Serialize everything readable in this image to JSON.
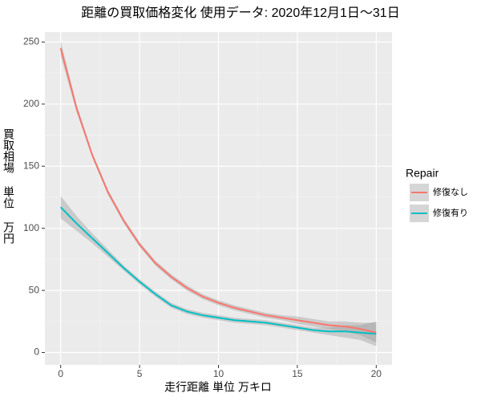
{
  "chart_data": {
    "type": "line",
    "title": "距離の買取価格変化 使用データ: 2020年12月1日～31日",
    "x_label": "走行距離 単位 万キロ",
    "y_label": "買取相場 単位 万円",
    "legend_title": "Repair",
    "legend_position": "right",
    "x": [
      0,
      1,
      2,
      3,
      4,
      5,
      6,
      7,
      8,
      9,
      10,
      11,
      12,
      13,
      14,
      15,
      16,
      17,
      18,
      19,
      20
    ],
    "series": [
      {
        "name": "修復なし",
        "color": "#F8766D",
        "values": [
          245,
          197,
          159,
          129,
          106,
          87,
          72,
          61,
          52,
          45,
          40,
          36,
          33,
          30,
          28,
          26,
          24,
          22,
          21,
          19,
          16
        ],
        "band_lower": [
          239,
          194,
          157,
          127,
          104,
          85,
          70,
          59,
          50,
          43,
          38,
          34,
          31,
          28,
          26,
          23,
          21,
          19,
          17,
          14,
          8
        ],
        "band_upper": [
          251,
          200,
          161,
          131,
          108,
          89,
          74,
          63,
          54,
          47,
          42,
          38,
          35,
          32,
          30,
          29,
          27,
          25,
          25,
          24,
          24
        ]
      },
      {
        "name": "修復有り",
        "color": "#00BFC4",
        "values": [
          117,
          104,
          92,
          80,
          68,
          57,
          47,
          38,
          33,
          30,
          28,
          26,
          25,
          24,
          22,
          20,
          18,
          17,
          17,
          16,
          15
        ],
        "band_lower": [
          108,
          98,
          88,
          77,
          66,
          55,
          45,
          36,
          31,
          28,
          26,
          24,
          23,
          22,
          20,
          18,
          16,
          14,
          12,
          10,
          5
        ],
        "band_upper": [
          126,
          110,
          96,
          83,
          70,
          59,
          49,
          40,
          35,
          32,
          30,
          28,
          27,
          26,
          24,
          22,
          20,
          20,
          22,
          22,
          25
        ]
      }
    ],
    "band_color": "#999999",
    "xlim": [
      -1,
      21
    ],
    "ylim": [
      -10,
      258
    ],
    "xticks": [
      0,
      5,
      10,
      15,
      20
    ],
    "yticks": [
      0,
      50,
      100,
      150,
      200,
      250
    ],
    "x_minor_breaks": [
      2.5,
      7.5,
      12.5,
      17.5
    ],
    "y_minor_breaks": [
      25,
      75,
      125,
      175,
      225
    ],
    "grid": true
  }
}
